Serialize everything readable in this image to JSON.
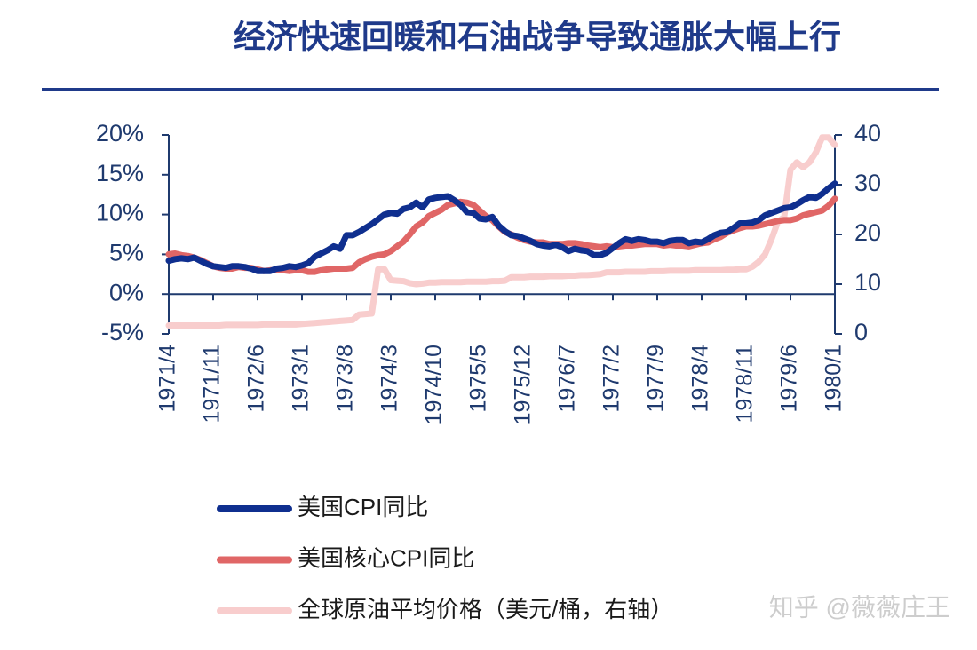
{
  "chart_data": {
    "type": "line",
    "title": "经济快速回暖和石油战争导致通胀大幅上行",
    "watermark": "知乎 @薇薇庄王",
    "categories": [
      "1971/4",
      null,
      null,
      null,
      null,
      null,
      null,
      "1971/11",
      null,
      null,
      null,
      null,
      null,
      null,
      "1972/6",
      null,
      null,
      null,
      null,
      null,
      null,
      "1973/1",
      null,
      null,
      null,
      null,
      null,
      null,
      "1973/8",
      null,
      null,
      null,
      null,
      null,
      null,
      "1974/3",
      null,
      null,
      null,
      null,
      null,
      null,
      "1974/10",
      null,
      null,
      null,
      null,
      null,
      null,
      "1975/5",
      null,
      null,
      null,
      null,
      null,
      null,
      "1975/12",
      null,
      null,
      null,
      null,
      null,
      null,
      "1976/7",
      null,
      null,
      null,
      null,
      null,
      null,
      "1977/2",
      null,
      null,
      null,
      null,
      null,
      null,
      "1977/9",
      null,
      null,
      null,
      null,
      null,
      null,
      "1978/4",
      null,
      null,
      null,
      null,
      null,
      null,
      "1978/11",
      null,
      null,
      null,
      null,
      null,
      null,
      "1979/6",
      null,
      null,
      null,
      null,
      null,
      null,
      "1980/1"
    ],
    "ylim": [
      -5,
      20
    ],
    "yticks": [
      {
        "value": -5,
        "label": "-5%"
      },
      {
        "value": 0,
        "label": "0%"
      },
      {
        "value": 5,
        "label": "5%"
      },
      {
        "value": 10,
        "label": "10%"
      },
      {
        "value": 15,
        "label": "15%"
      },
      {
        "value": 20,
        "label": "20%"
      }
    ],
    "y2lim": [
      0,
      40
    ],
    "y2ticks": [
      0,
      10,
      20,
      30,
      40
    ],
    "legend": "bottom",
    "series": [
      {
        "name": "全球原油平均价格（美元/桶，右轴）",
        "color": "#f8cdcd",
        "axis": "y2",
        "values": [
          1.7,
          1.7,
          1.7,
          1.7,
          1.7,
          1.7,
          1.7,
          1.7,
          1.7,
          1.8,
          1.8,
          1.8,
          1.8,
          1.8,
          1.8,
          1.9,
          1.9,
          1.9,
          1.9,
          1.9,
          1.9,
          2.0,
          2.1,
          2.2,
          2.3,
          2.4,
          2.5,
          2.6,
          2.7,
          2.8,
          3.9,
          4.0,
          4.1,
          13.0,
          13.0,
          10.8,
          10.7,
          10.6,
          10.2,
          10.0,
          10.1,
          10.3,
          10.3,
          10.4,
          10.4,
          10.4,
          10.4,
          10.5,
          10.5,
          10.5,
          10.5,
          10.6,
          10.6,
          10.7,
          11.4,
          11.4,
          11.4,
          11.5,
          11.5,
          11.5,
          11.6,
          11.6,
          11.6,
          11.7,
          11.7,
          11.8,
          11.8,
          11.9,
          12.0,
          12.4,
          12.4,
          12.4,
          12.5,
          12.5,
          12.5,
          12.5,
          12.6,
          12.6,
          12.6,
          12.7,
          12.7,
          12.7,
          12.7,
          12.8,
          12.8,
          12.8,
          12.8,
          12.8,
          12.9,
          12.9,
          13.0,
          13.0,
          13.5,
          14.5,
          16.0,
          19.0,
          22.5,
          23.5,
          33.0,
          34.5,
          33.5,
          34.5,
          36.5,
          39.5,
          39.5,
          38.0
        ]
      },
      {
        "name": "美国核心CPI同比",
        "color": "#e06666",
        "values": [
          5.0,
          5.1,
          4.9,
          4.8,
          4.6,
          4.3,
          3.9,
          3.5,
          3.3,
          3.2,
          3.2,
          3.4,
          3.3,
          3.3,
          3.1,
          2.9,
          3.0,
          3.0,
          3.0,
          2.9,
          3.0,
          3.0,
          2.8,
          2.8,
          3.0,
          3.1,
          3.2,
          3.2,
          3.2,
          3.3,
          4.0,
          4.4,
          4.7,
          4.9,
          5.0,
          5.4,
          6.0,
          6.6,
          7.5,
          8.5,
          9.0,
          9.8,
          10.2,
          10.6,
          11.2,
          11.4,
          11.6,
          11.5,
          11.2,
          10.5,
          9.8,
          9.3,
          8.5,
          7.8,
          7.5,
          7.1,
          6.8,
          6.6,
          6.5,
          6.5,
          6.3,
          6.3,
          6.3,
          6.4,
          6.4,
          6.3,
          6.1,
          6.0,
          5.9,
          6.0,
          5.9,
          6.0,
          6.1,
          6.1,
          6.2,
          6.3,
          6.3,
          6.3,
          6.1,
          6.2,
          6.1,
          6.1,
          6.0,
          6.2,
          6.4,
          6.5,
          6.9,
          7.2,
          7.7,
          8.0,
          8.3,
          8.5,
          8.5,
          8.6,
          8.8,
          9.0,
          9.2,
          9.3,
          9.3,
          9.5,
          9.9,
          10.1,
          10.3,
          10.5,
          11.1,
          12.0
        ]
      },
      {
        "name": "美国CPI同比",
        "color": "#0f2f8f",
        "values": [
          4.2,
          4.4,
          4.5,
          4.4,
          4.6,
          4.2,
          3.8,
          3.5,
          3.4,
          3.3,
          3.5,
          3.5,
          3.4,
          3.2,
          2.9,
          2.9,
          2.9,
          3.2,
          3.3,
          3.5,
          3.4,
          3.6,
          3.9,
          4.7,
          5.1,
          5.5,
          6.0,
          5.7,
          7.4,
          7.4,
          7.8,
          8.3,
          8.8,
          9.4,
          10.0,
          10.2,
          10.1,
          10.7,
          10.9,
          11.5,
          10.9,
          11.9,
          12.1,
          12.2,
          12.3,
          11.8,
          11.2,
          10.3,
          10.2,
          9.5,
          9.4,
          9.7,
          8.6,
          7.9,
          7.4,
          7.3,
          7.0,
          6.7,
          6.3,
          6.1,
          6.0,
          6.2,
          5.9,
          5.4,
          5.7,
          5.5,
          5.4,
          4.9,
          4.9,
          5.2,
          5.8,
          6.4,
          6.9,
          6.7,
          6.9,
          6.8,
          6.6,
          6.6,
          6.4,
          6.7,
          6.8,
          6.8,
          6.4,
          6.6,
          6.5,
          6.9,
          7.4,
          7.7,
          7.8,
          8.3,
          8.9,
          8.9,
          9.0,
          9.3,
          9.9,
          10.2,
          10.5,
          10.8,
          10.9,
          11.3,
          11.8,
          12.2,
          12.1,
          12.6,
          13.3,
          13.9
        ]
      }
    ]
  }
}
